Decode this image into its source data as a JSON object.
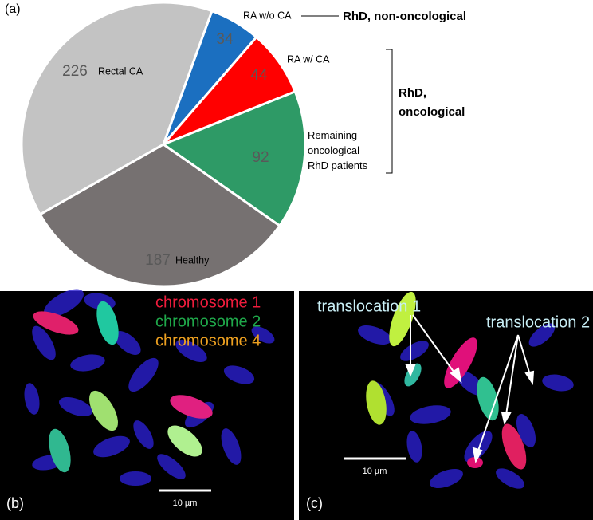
{
  "chart_data": {
    "type": "pie",
    "categories": [
      "RA w/o CA",
      "RA w/ CA",
      "Remaining oncological RhD patients",
      "Healthy",
      "Rectal CA"
    ],
    "values": [
      34,
      44,
      92,
      187,
      226
    ],
    "colors": [
      "#1b6fc0",
      "#ff0000",
      "#2e9a66",
      "#767171",
      "#c3c3c3"
    ],
    "annotations": [
      "RhD, non-oncological",
      "RhD, oncological"
    ]
  },
  "panel_labels": [
    "(a)",
    "(b)",
    "(c)"
  ],
  "images": [
    {
      "legend": [
        {
          "text": "chromosome 1",
          "color": "#ee1c3c"
        },
        {
          "text": "chromosome 2",
          "color": "#1fa84a"
        },
        {
          "text": "chromosome 4",
          "color": "#eda020"
        }
      ],
      "scale_bar": "10 µm"
    },
    {
      "legend": [
        {
          "text": "translocation 1",
          "color": "#c8eef5"
        },
        {
          "text": "translocation 2",
          "color": "#c8eef5"
        }
      ],
      "scale_bar": "10 µm"
    }
  ]
}
